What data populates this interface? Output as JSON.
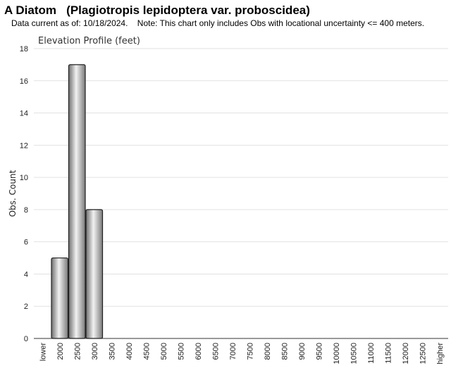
{
  "chart_data": {
    "type": "bar",
    "title": "A Diatom   (Plagiotropis lepidoptera var. proboscidea)",
    "subtitle": "Data current as of: 10/18/2024.    Note: This chart only includes Obs with locational uncertainty <= 400 meters.",
    "chart_title": "Elevation Profile (feet)",
    "y_label": "Obs. Count",
    "categories": [
      "lower",
      "2000",
      "2500",
      "3000",
      "3500",
      "4000",
      "4500",
      "5000",
      "5500",
      "6000",
      "6500",
      "7000",
      "7500",
      "8000",
      "8500",
      "9000",
      "9500",
      "10000",
      "10500",
      "11000",
      "11500",
      "12000",
      "12500",
      "higher"
    ],
    "values": [
      0,
      5,
      17,
      8,
      0,
      0,
      0,
      0,
      0,
      0,
      0,
      0,
      0,
      0,
      0,
      0,
      0,
      0,
      0,
      0,
      0,
      0,
      0,
      0
    ],
    "color": "#a0a0a0",
    "ylim": [
      0,
      18
    ],
    "yticks": [
      0,
      2,
      4,
      6,
      8,
      10,
      12,
      14,
      16,
      18
    ],
    "grid": true
  }
}
